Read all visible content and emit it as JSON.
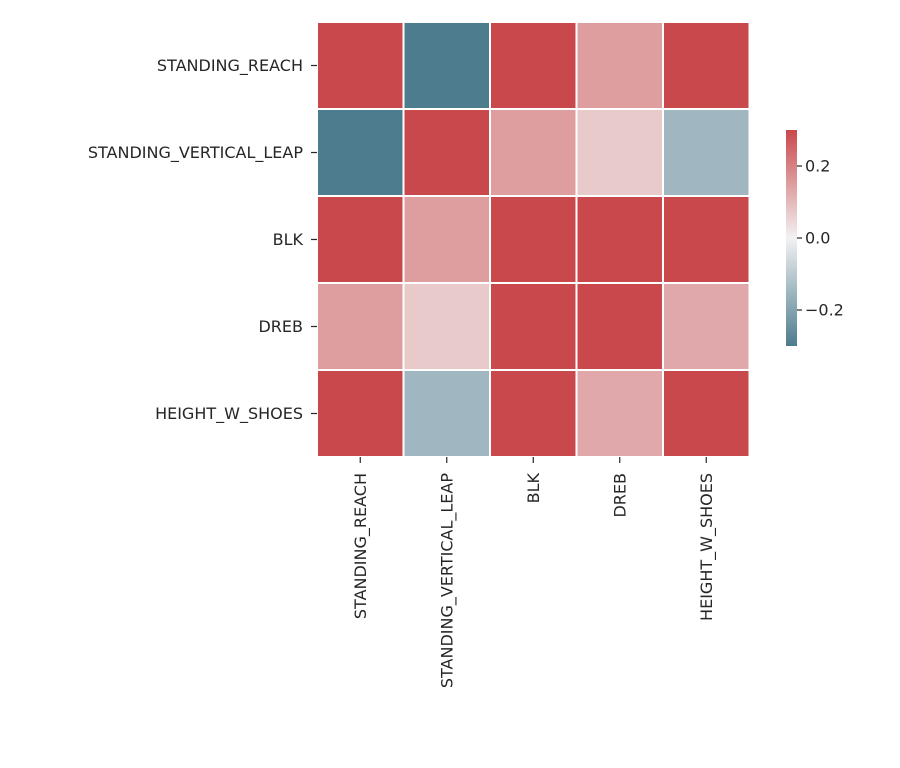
{
  "chart_data": {
    "type": "heatmap",
    "rows": [
      "STANDING_REACH",
      "STANDING_VERTICAL_LEAP",
      "BLK",
      "DREB",
      "HEIGHT_W_SHOES"
    ],
    "columns": [
      "STANDING_REACH",
      "STANDING_VERTICAL_LEAP",
      "BLK",
      "DREB",
      "HEIGHT_W_SHOES"
    ],
    "values": [
      [
        0.3,
        -0.3,
        0.3,
        0.15,
        0.3
      ],
      [
        -0.3,
        0.3,
        0.15,
        0.07,
        -0.15
      ],
      [
        0.3,
        0.15,
        0.3,
        0.3,
        0.3
      ],
      [
        0.15,
        0.07,
        0.3,
        0.3,
        0.13
      ],
      [
        0.3,
        -0.15,
        0.3,
        0.13,
        0.3
      ]
    ],
    "vmin": -0.3,
    "vmax": 0.3,
    "colorbar": {
      "ticks": [
        0.2,
        0.0,
        -0.2
      ],
      "tick_labels": [
        "0.2",
        "0.0",
        "−0.2"
      ]
    },
    "colormap": {
      "negative": "#4d7c8f",
      "neutral": "#f2f2f2",
      "positive": "#c9484b"
    },
    "cell_border_color": "#ffffff",
    "title": "",
    "xlabel": "",
    "ylabel": ""
  }
}
